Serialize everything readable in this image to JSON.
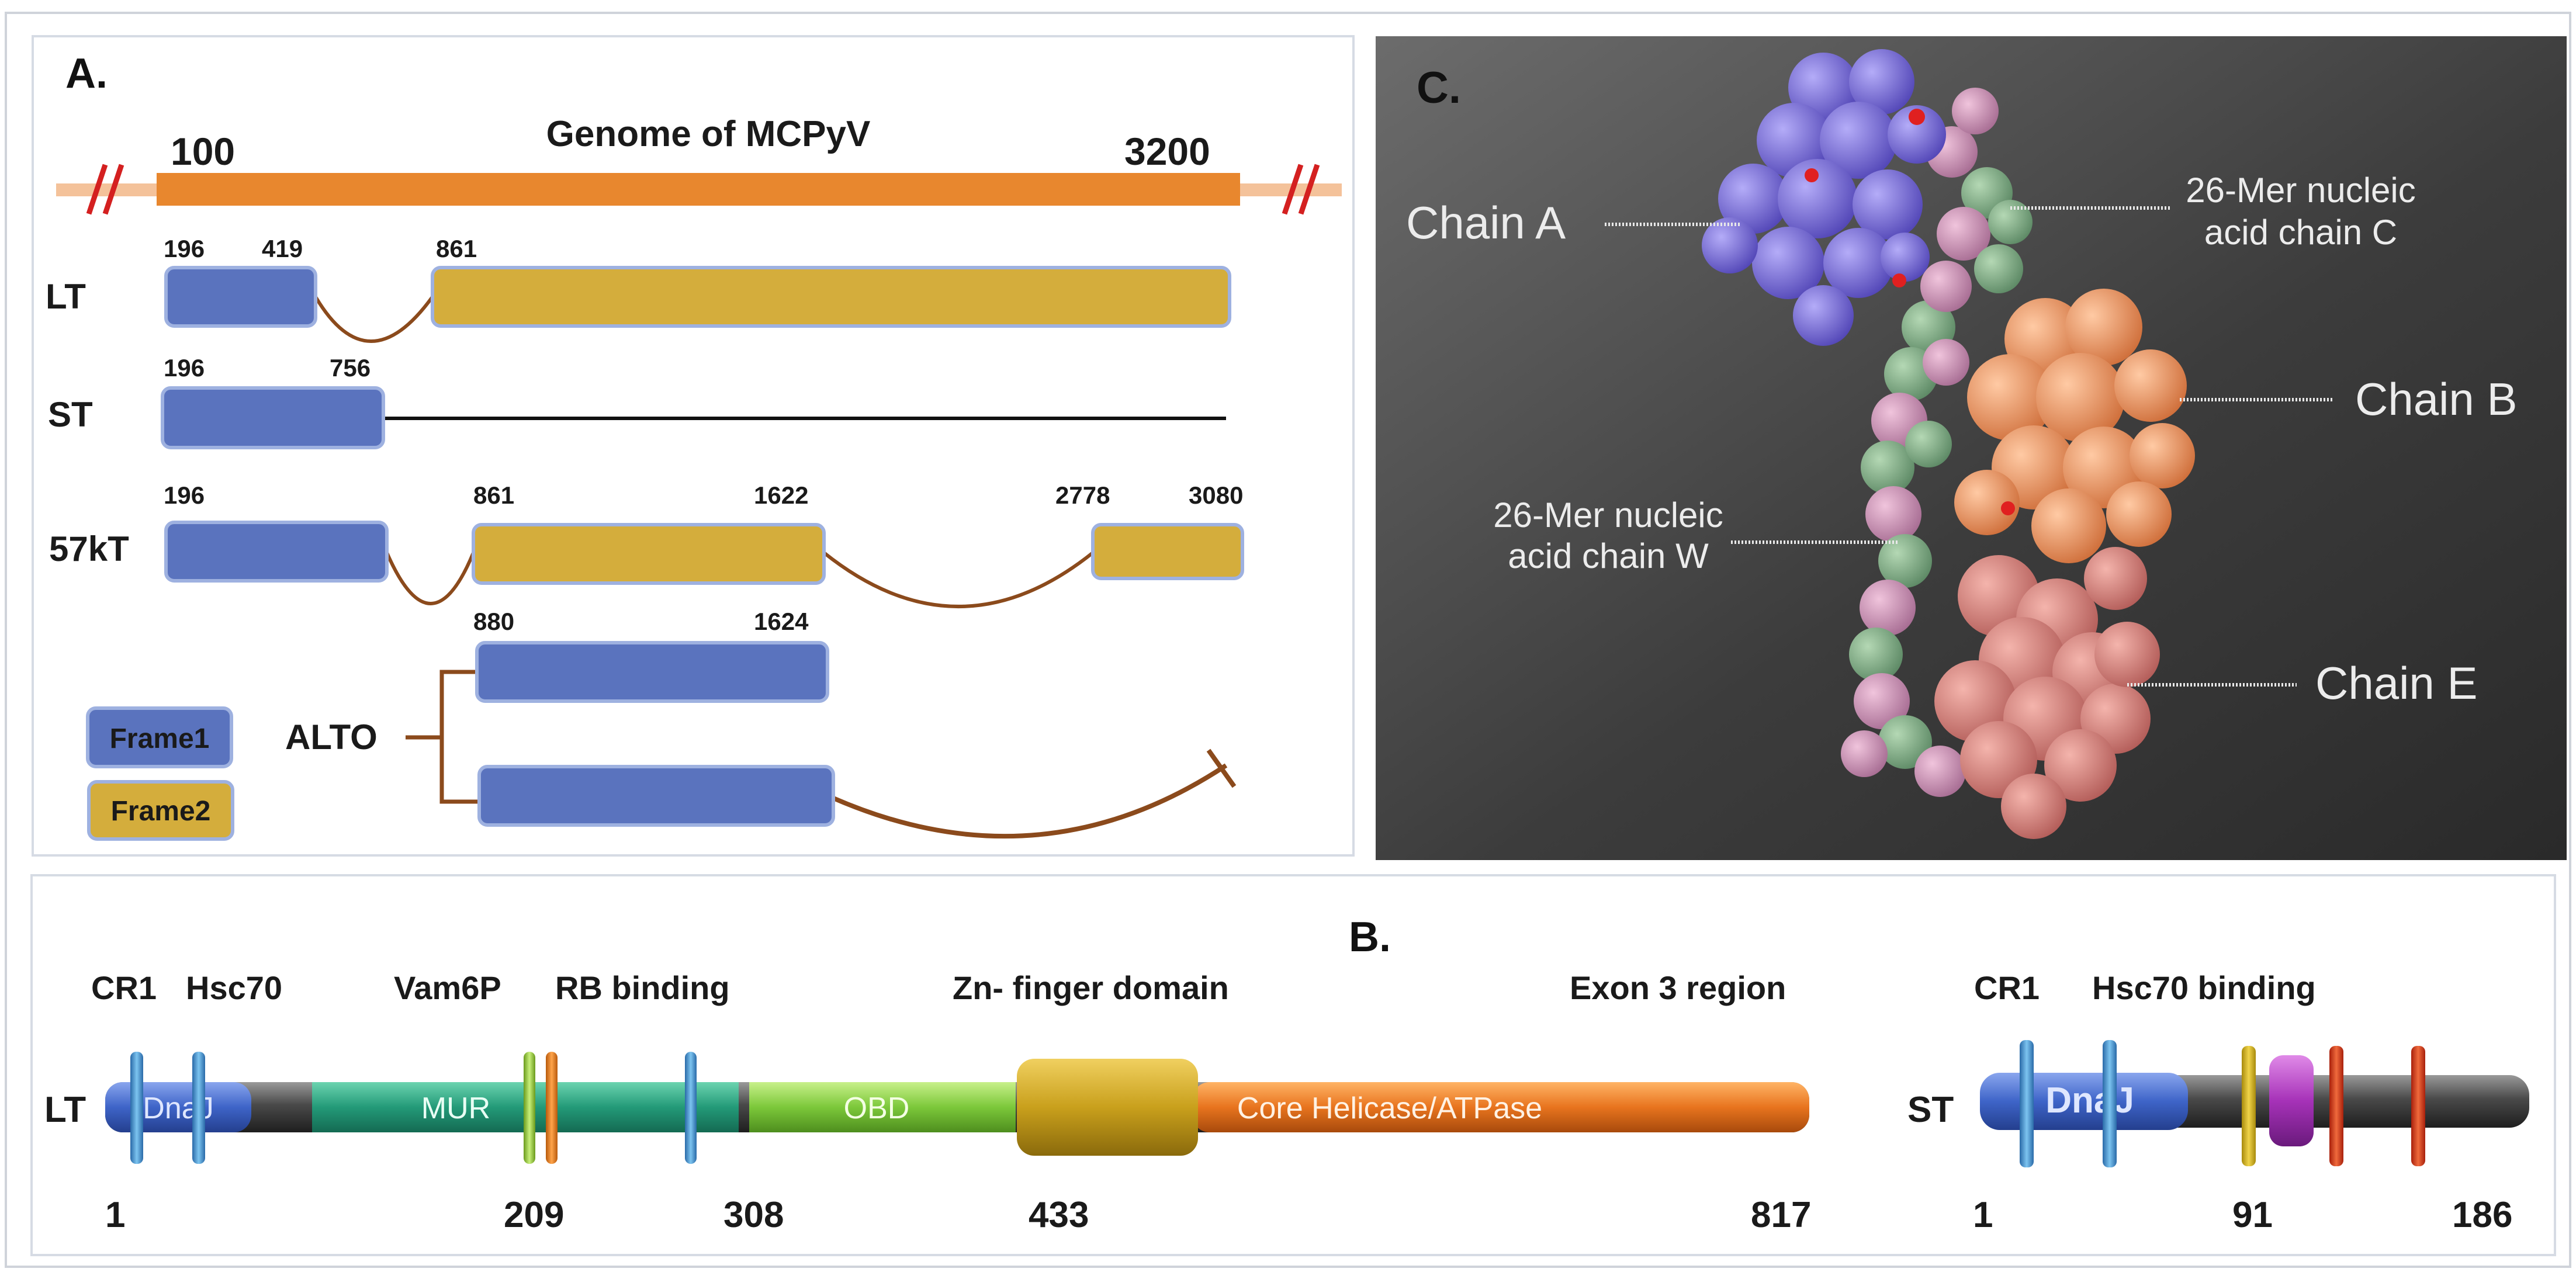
{
  "panelA": {
    "label": "A.",
    "genome": {
      "title": "Genome of MCPyV",
      "start": "100",
      "end": "3200"
    },
    "rows": [
      {
        "name": "LT",
        "ticks": [
          "196",
          "419",
          "861"
        ]
      },
      {
        "name": "ST",
        "ticks": [
          "196",
          "756"
        ]
      },
      {
        "name": "57kT",
        "ticks": [
          "196",
          "861",
          "1622",
          "2778",
          "3080"
        ]
      },
      {
        "name": "ALTO",
        "ticks": [
          "880",
          "1624"
        ]
      }
    ],
    "legend": {
      "frame1": "Frame1",
      "frame2": "Frame2"
    },
    "colors": {
      "frame1": "#5a73be",
      "frame2": "#d4ad3c",
      "genome": "#e8872e",
      "splice": "#8b4a1c"
    }
  },
  "panelB": {
    "label": "B.",
    "lt": {
      "name": "LT",
      "top_labels": [
        "CR1",
        "Hsc70",
        "Vam6P",
        "RB binding",
        "Zn- finger domain",
        "Exon 3 region"
      ],
      "domains": [
        "DnaJ",
        "MUR",
        "OBD",
        "Core Helicase/ATPase"
      ],
      "positions": [
        "1",
        "209",
        "308",
        "433",
        "817"
      ]
    },
    "st": {
      "name": "ST",
      "top_labels": [
        "CR1",
        "Hsc70 binding"
      ],
      "domains": [
        "DnaJ"
      ],
      "positions": [
        "1",
        "91",
        "186"
      ]
    }
  },
  "panelC": {
    "label": "C.",
    "chains": [
      "Chain A",
      "26-Mer nucleic",
      "acid chain C",
      "Chain B",
      "26-Mer nucleic",
      "acid chain W",
      "Chain E"
    ]
  }
}
